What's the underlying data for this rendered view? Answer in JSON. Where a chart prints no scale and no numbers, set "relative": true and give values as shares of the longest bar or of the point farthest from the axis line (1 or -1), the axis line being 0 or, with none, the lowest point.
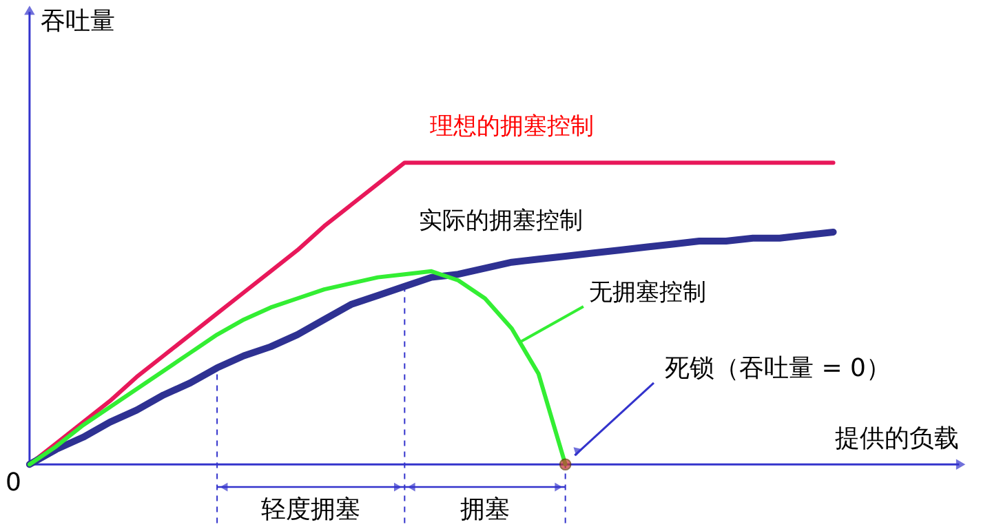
{
  "chart_data": {
    "type": "line",
    "relative": true,
    "xlabel": "提供的负载",
    "legend": false,
    "categories": [
      null,
      null,
      null,
      null,
      null,
      null,
      null,
      null,
      null,
      null,
      null,
      null,
      null,
      null,
      null,
      null,
      null,
      null,
      null,
      null,
      null,
      null,
      null,
      null,
      null,
      null,
      null,
      null,
      null,
      null,
      null
    ],
    "series": [
      {
        "name": "理想的拥塞控制",
        "color": "#e8185a",
        "values": [
          0,
          0.07,
          0.14,
          0.21,
          0.29,
          0.36,
          0.43,
          0.5,
          0.57,
          0.64,
          0.71,
          0.79,
          0.86,
          0.93,
          1,
          1,
          1,
          1,
          1,
          1,
          1,
          1,
          1,
          1,
          1,
          1,
          1,
          1,
          1,
          1,
          1
        ]
      },
      {
        "name": "实际的拥塞控制",
        "color": "#2e3192",
        "values": [
          0,
          0.05,
          0.09,
          0.14,
          0.18,
          0.23,
          0.27,
          0.32,
          0.36,
          0.39,
          0.43,
          0.48,
          0.53,
          0.56,
          0.59,
          0.62,
          0.63,
          0.65,
          0.67,
          0.68,
          0.69,
          0.7,
          0.71,
          0.72,
          0.73,
          0.74,
          0.74,
          0.75,
          0.75,
          0.76,
          0.77
        ]
      },
      {
        "name": "无拥塞控制",
        "color": "#33ee33",
        "values": [
          0,
          0.06,
          0.13,
          0.19,
          0.25,
          0.31,
          0.37,
          0.43,
          0.48,
          0.52,
          0.55,
          0.58,
          0.6,
          0.62,
          0.63,
          0.64,
          0.61,
          0.55,
          0.45,
          0.3,
          0,
          null,
          null,
          null,
          null,
          null,
          null,
          null,
          null,
          null,
          null
        ]
      }
    ],
    "annotations": [
      "0",
      "轻度拥塞",
      "拥塞",
      "死锁（吞吐量 = 0）",
      "吞吐量"
    ]
  }
}
